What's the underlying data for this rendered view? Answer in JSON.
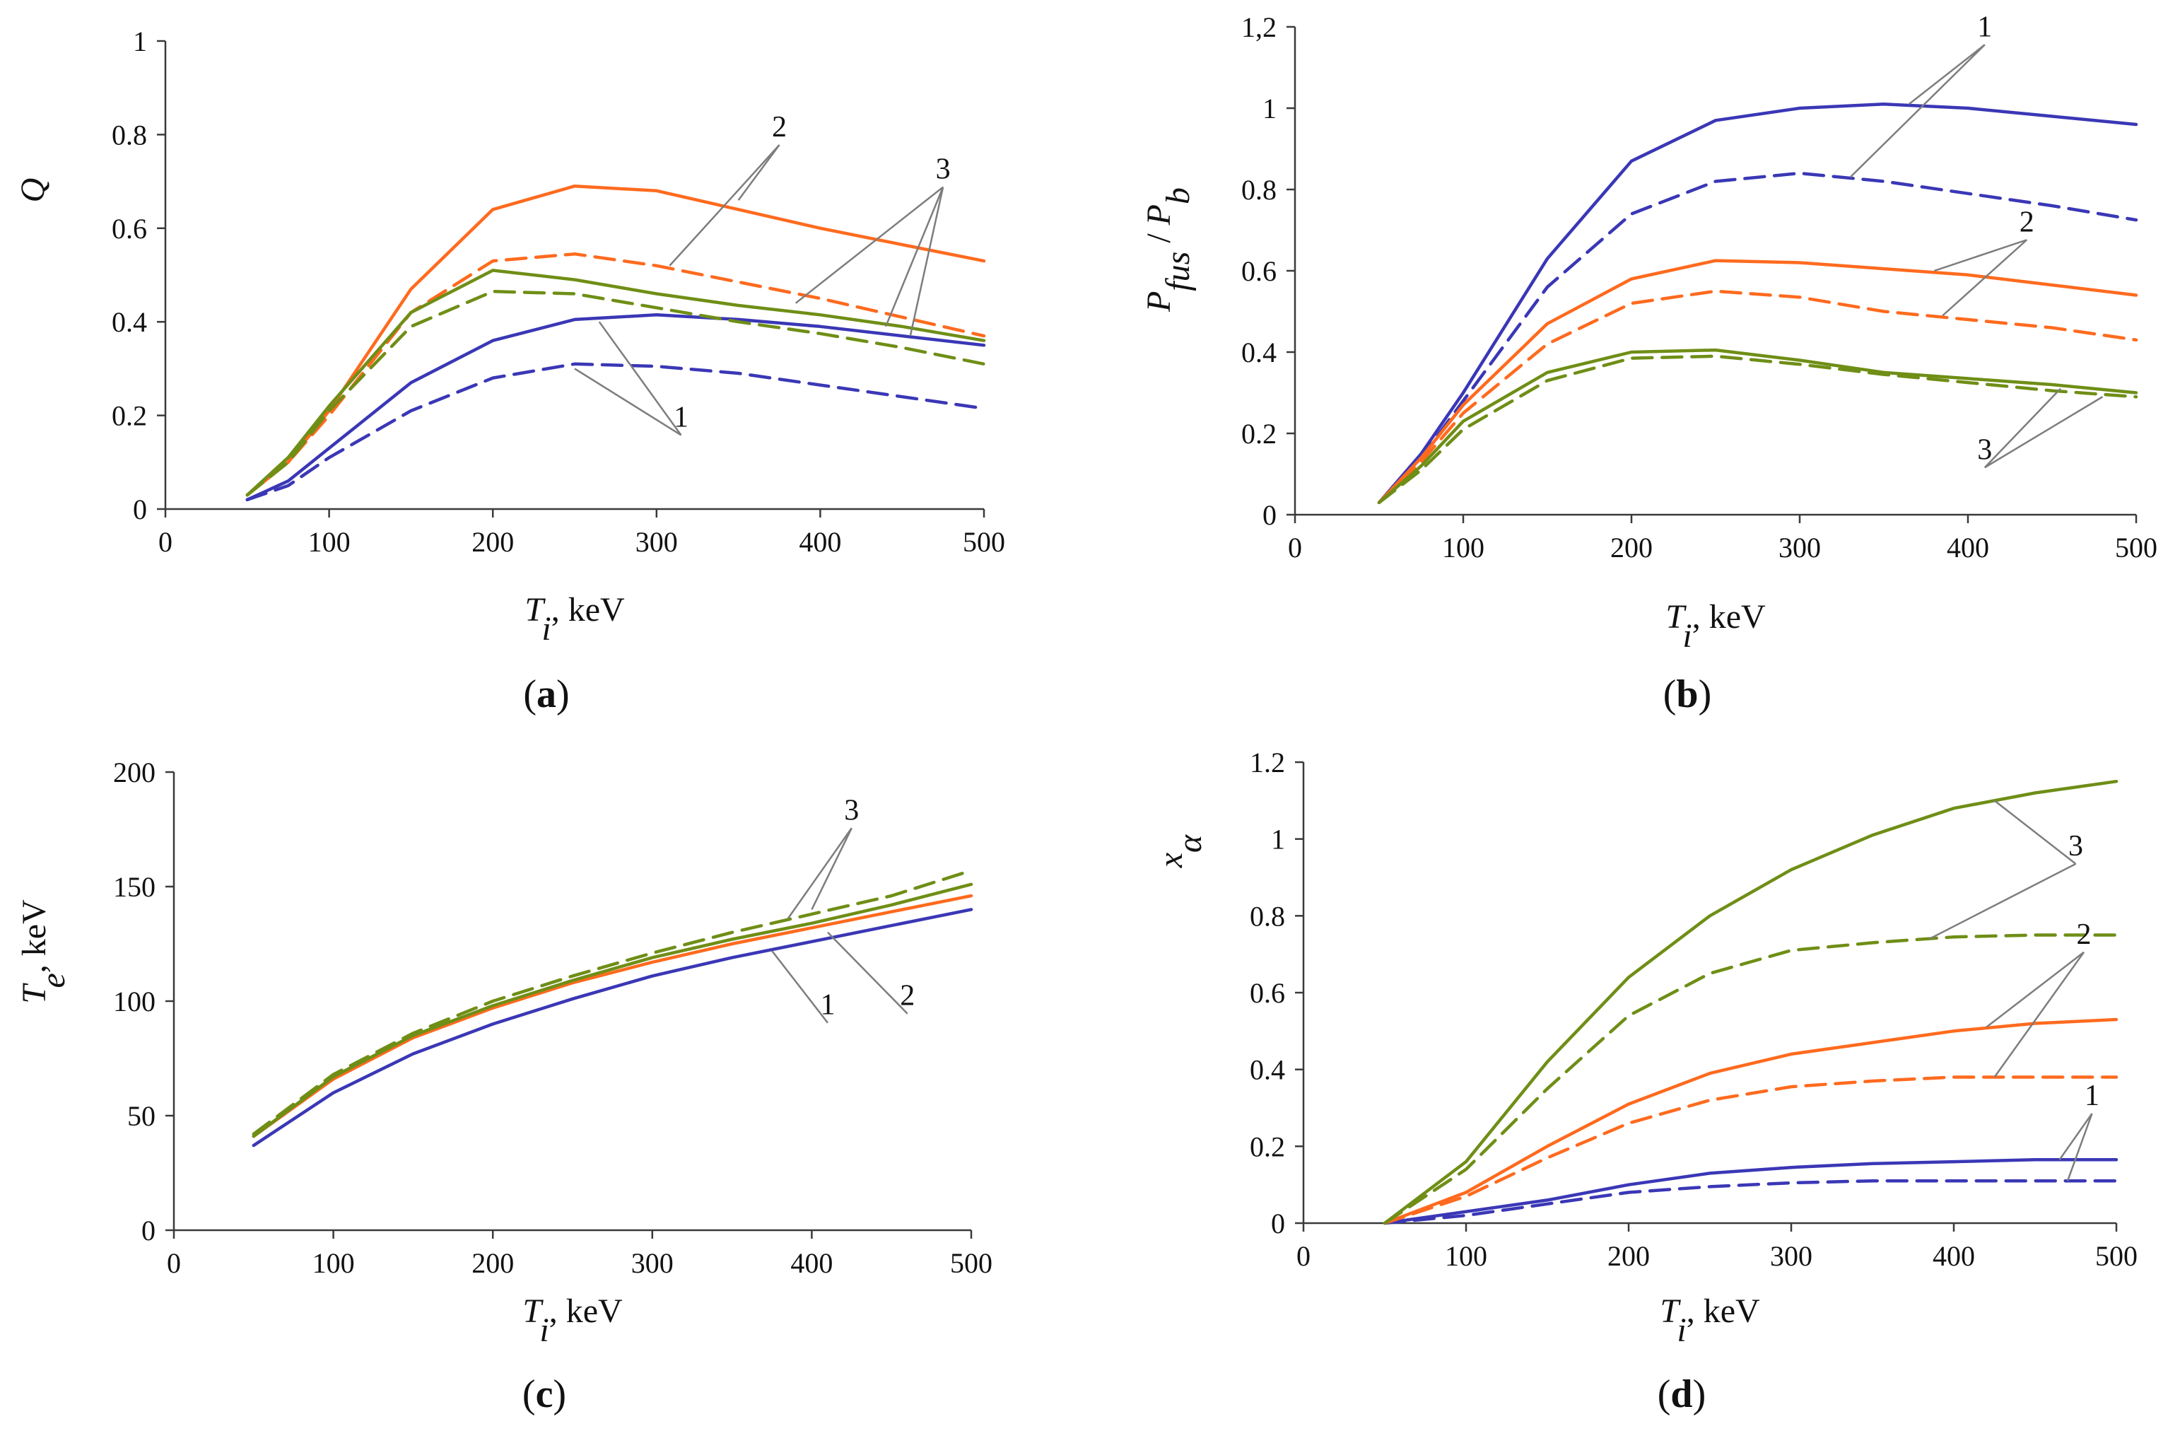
{
  "colors": {
    "1": "#3a37b6",
    "2": "#ff6a1e",
    "3": "#6f8e16",
    "axis": "#3a3a3a",
    "leader": "#7d7d7d"
  },
  "chart_data": [
    {
      "id": "a",
      "type": "line",
      "panel_label": "a",
      "ylabel": "Q",
      "xlabel_main": "T",
      "xlabel_sub": "i",
      "xlabel_unit": ", keV",
      "xlim": [
        0,
        500
      ],
      "ylim": [
        0,
        1
      ],
      "x_ticks": [
        0,
        100,
        200,
        300,
        400,
        500
      ],
      "x_tick_labels": [
        "0",
        "100",
        "200",
        "300",
        "400",
        "500"
      ],
      "y_ticks": [
        0,
        0.2,
        0.4,
        0.6,
        0.8,
        1
      ],
      "y_tick_labels": [
        "0",
        "0.2",
        "0.4",
        "0.6",
        "0.8",
        "1"
      ],
      "series": [
        {
          "name": "1",
          "group": "1",
          "style": "solid",
          "x": [
            50,
            75,
            100,
            150,
            200,
            250,
            300,
            350,
            400,
            450,
            500
          ],
          "y": [
            0.02,
            0.06,
            0.13,
            0.27,
            0.36,
            0.405,
            0.415,
            0.405,
            0.39,
            0.37,
            0.35
          ]
        },
        {
          "name": "1 dashed",
          "group": "1",
          "style": "dashed",
          "x": [
            50,
            75,
            100,
            150,
            200,
            250,
            300,
            350,
            400,
            450,
            500
          ],
          "y": [
            0.02,
            0.05,
            0.11,
            0.21,
            0.28,
            0.31,
            0.305,
            0.29,
            0.265,
            0.24,
            0.215
          ]
        },
        {
          "name": "2",
          "group": "2",
          "style": "solid",
          "x": [
            50,
            75,
            100,
            150,
            200,
            250,
            300,
            350,
            400,
            450,
            500
          ],
          "y": [
            0.03,
            0.1,
            0.21,
            0.47,
            0.64,
            0.69,
            0.68,
            0.64,
            0.6,
            0.565,
            0.53
          ]
        },
        {
          "name": "2 dashed",
          "group": "2",
          "style": "dashed",
          "x": [
            50,
            75,
            100,
            150,
            200,
            250,
            300,
            350,
            400,
            450,
            500
          ],
          "y": [
            0.03,
            0.1,
            0.2,
            0.42,
            0.53,
            0.545,
            0.52,
            0.485,
            0.45,
            0.41,
            0.37
          ]
        },
        {
          "name": "3",
          "group": "3",
          "style": "solid",
          "x": [
            50,
            75,
            100,
            150,
            200,
            250,
            300,
            350,
            400,
            450,
            500
          ],
          "y": [
            0.03,
            0.11,
            0.22,
            0.42,
            0.51,
            0.49,
            0.46,
            0.435,
            0.415,
            0.39,
            0.36
          ]
        },
        {
          "name": "3 dashed",
          "group": "3",
          "style": "dashed",
          "x": [
            50,
            75,
            100,
            150,
            200,
            250,
            300,
            350,
            400,
            450,
            500
          ],
          "y": [
            0.03,
            0.1,
            0.21,
            0.39,
            0.465,
            0.46,
            0.43,
            0.4,
            0.375,
            0.345,
            0.31
          ]
        }
      ],
      "annotations": [
        {
          "text": "1",
          "at": [
            315,
            0.17
          ],
          "targets": [
            [
              265,
              0.4
            ],
            [
              250,
              0.3
            ]
          ]
        },
        {
          "text": "2",
          "at": [
            375,
            0.79
          ],
          "targets": [
            [
              350,
              0.66
            ],
            [
              308,
              0.52
            ]
          ]
        },
        {
          "text": "3",
          "at": [
            475,
            0.7
          ],
          "targets": [
            [
              385,
              0.44
            ],
            [
              455,
              0.37
            ],
            [
              440,
              0.39
            ]
          ]
        }
      ]
    },
    {
      "id": "b",
      "type": "line",
      "panel_label": "b",
      "ylabel_main": "P",
      "ylabel_sub": "fus",
      "ylabel_sep": " / ",
      "ylabel_main2": "P",
      "ylabel_sub2": "b",
      "xlabel_main": "T",
      "xlabel_sub": "i",
      "xlabel_unit": ", keV",
      "xlim": [
        0,
        500
      ],
      "ylim": [
        0,
        1.2
      ],
      "x_ticks": [
        0,
        100,
        200,
        300,
        400,
        500
      ],
      "x_tick_labels": [
        "0",
        "100",
        "200",
        "300",
        "400",
        "500"
      ],
      "y_ticks": [
        0,
        0.2,
        0.4,
        0.6,
        0.8,
        1,
        1.2
      ],
      "y_tick_labels": [
        "0",
        "0.2",
        "0.4",
        "0.6",
        "0.8",
        "1",
        "1,2"
      ],
      "series": [
        {
          "name": "1",
          "group": "1",
          "style": "solid",
          "x": [
            50,
            75,
            100,
            150,
            200,
            250,
            300,
            350,
            400,
            450,
            500
          ],
          "y": [
            0.03,
            0.15,
            0.3,
            0.63,
            0.87,
            0.97,
            1.0,
            1.01,
            1.0,
            0.98,
            0.96
          ]
        },
        {
          "name": "1 dashed",
          "group": "1",
          "style": "dashed",
          "x": [
            50,
            75,
            100,
            150,
            200,
            250,
            300,
            350,
            400,
            450,
            500
          ],
          "y": [
            0.03,
            0.14,
            0.28,
            0.56,
            0.74,
            0.82,
            0.84,
            0.82,
            0.79,
            0.76,
            0.725
          ]
        },
        {
          "name": "2",
          "group": "2",
          "style": "solid",
          "x": [
            50,
            75,
            100,
            150,
            200,
            250,
            300,
            350,
            400,
            450,
            500
          ],
          "y": [
            0.03,
            0.14,
            0.27,
            0.47,
            0.58,
            0.625,
            0.62,
            0.605,
            0.59,
            0.565,
            0.54
          ]
        },
        {
          "name": "2 dashed",
          "group": "2",
          "style": "dashed",
          "x": [
            50,
            75,
            100,
            150,
            200,
            250,
            300,
            350,
            400,
            450,
            500
          ],
          "y": [
            0.03,
            0.13,
            0.25,
            0.42,
            0.52,
            0.55,
            0.535,
            0.5,
            0.48,
            0.46,
            0.43
          ]
        },
        {
          "name": "3",
          "group": "3",
          "style": "solid",
          "x": [
            50,
            75,
            100,
            150,
            200,
            250,
            300,
            350,
            400,
            450,
            500
          ],
          "y": [
            0.03,
            0.12,
            0.23,
            0.35,
            0.4,
            0.405,
            0.38,
            0.35,
            0.335,
            0.32,
            0.3
          ]
        },
        {
          "name": "3 dashed",
          "group": "3",
          "style": "dashed",
          "x": [
            50,
            75,
            100,
            150,
            200,
            250,
            300,
            350,
            400,
            450,
            500
          ],
          "y": [
            0.03,
            0.11,
            0.21,
            0.33,
            0.385,
            0.39,
            0.37,
            0.345,
            0.325,
            0.305,
            0.29
          ]
        }
      ],
      "annotations": [
        {
          "text": "1",
          "at": [
            410,
            1.17
          ],
          "targets": [
            [
              365,
              1.01
            ],
            [
              330,
              0.83
            ]
          ]
        },
        {
          "text": "2",
          "at": [
            435,
            0.69
          ],
          "targets": [
            [
              380,
              0.6
            ],
            [
              385,
              0.49
            ]
          ]
        },
        {
          "text": "3",
          "at": [
            410,
            0.13
          ],
          "targets": [
            [
              455,
              0.31
            ],
            [
              480,
              0.29
            ]
          ]
        }
      ]
    },
    {
      "id": "c",
      "type": "line",
      "panel_label": "c",
      "ylabel_main": "T",
      "ylabel_sub": "e",
      "ylabel_unit": ", keV",
      "xlabel_main": "T",
      "xlabel_sub": "i",
      "xlabel_unit": ", keV",
      "xlim": [
        0,
        500
      ],
      "ylim": [
        0,
        200
      ],
      "x_ticks": [
        0,
        100,
        200,
        300,
        400,
        500
      ],
      "x_tick_labels": [
        "0",
        "100",
        "200",
        "300",
        "400",
        "500"
      ],
      "y_ticks": [
        0,
        50,
        100,
        150,
        200
      ],
      "y_tick_labels": [
        "0",
        "50",
        "100",
        "150",
        "200"
      ],
      "series": [
        {
          "name": "1",
          "group": "1",
          "style": "solid",
          "x": [
            50,
            100,
            150,
            200,
            250,
            300,
            350,
            400,
            450,
            500
          ],
          "y": [
            37,
            60,
            77,
            90,
            101,
            111,
            119,
            126,
            133,
            140
          ]
        },
        {
          "name": "2",
          "group": "2",
          "style": "solid",
          "x": [
            50,
            100,
            150,
            200,
            250,
            300,
            350,
            400,
            450,
            500
          ],
          "y": [
            41,
            66,
            84,
            97,
            108,
            117,
            125,
            132,
            139,
            146
          ]
        },
        {
          "name": "3",
          "group": "3",
          "style": "solid",
          "x": [
            50,
            100,
            150,
            200,
            250,
            300,
            350,
            400,
            450,
            500
          ],
          "y": [
            41,
            67,
            85,
            98,
            109,
            119,
            127,
            134,
            142,
            151
          ]
        },
        {
          "name": "3 dashed",
          "group": "3",
          "style": "dashed",
          "x": [
            50,
            100,
            150,
            200,
            250,
            300,
            350,
            400,
            450,
            500
          ],
          "y": [
            42,
            68,
            86,
            100,
            111,
            121,
            130,
            138,
            146,
            157
          ]
        }
      ],
      "annotations": [
        {
          "text": "1",
          "at": [
            410,
            93
          ],
          "targets": [
            [
              375,
              122
            ]
          ]
        },
        {
          "text": "2",
          "at": [
            460,
            97
          ],
          "targets": [
            [
              410,
              130
            ]
          ]
        },
        {
          "text": "3",
          "at": [
            425,
            178
          ],
          "targets": [
            [
              385,
              136
            ],
            [
              400,
              140
            ]
          ]
        }
      ]
    },
    {
      "id": "d",
      "type": "line",
      "panel_label": "d",
      "ylabel_main": "x",
      "ylabel_sub": "α",
      "xlabel_main": "T",
      "xlabel_sub": "i",
      "xlabel_unit": ", keV",
      "xlim": [
        0,
        500
      ],
      "ylim": [
        0,
        1.2
      ],
      "x_ticks": [
        0,
        100,
        200,
        300,
        400,
        500
      ],
      "x_tick_labels": [
        "0",
        "100",
        "200",
        "300",
        "400",
        "500"
      ],
      "y_ticks": [
        0,
        0.2,
        0.4,
        0.6,
        0.8,
        1,
        1.2
      ],
      "y_tick_labels": [
        "0",
        "0.2",
        "0.4",
        "0.6",
        "0.8",
        "1",
        "1.2"
      ],
      "series": [
        {
          "name": "1",
          "group": "1",
          "style": "solid",
          "x": [
            50,
            100,
            150,
            200,
            250,
            300,
            350,
            400,
            450,
            500
          ],
          "y": [
            0.0,
            0.03,
            0.06,
            0.1,
            0.13,
            0.145,
            0.155,
            0.16,
            0.165,
            0.165
          ]
        },
        {
          "name": "1 dashed",
          "group": "1",
          "style": "dashed",
          "x": [
            50,
            100,
            150,
            200,
            250,
            300,
            350,
            400,
            450,
            500
          ],
          "y": [
            0.0,
            0.02,
            0.05,
            0.08,
            0.095,
            0.105,
            0.11,
            0.11,
            0.11,
            0.11
          ]
        },
        {
          "name": "2",
          "group": "2",
          "style": "solid",
          "x": [
            50,
            100,
            150,
            200,
            250,
            300,
            350,
            400,
            450,
            500
          ],
          "y": [
            0.0,
            0.08,
            0.2,
            0.31,
            0.39,
            0.44,
            0.47,
            0.5,
            0.52,
            0.53
          ]
        },
        {
          "name": "2 dashed",
          "group": "2",
          "style": "dashed",
          "x": [
            50,
            100,
            150,
            200,
            250,
            300,
            350,
            400,
            450,
            500
          ],
          "y": [
            0.0,
            0.07,
            0.17,
            0.26,
            0.32,
            0.355,
            0.37,
            0.38,
            0.38,
            0.38
          ]
        },
        {
          "name": "3",
          "group": "3",
          "style": "solid",
          "x": [
            50,
            100,
            150,
            200,
            250,
            300,
            350,
            400,
            450,
            500
          ],
          "y": [
            0.0,
            0.16,
            0.42,
            0.64,
            0.8,
            0.92,
            1.01,
            1.08,
            1.12,
            1.15
          ]
        },
        {
          "name": "3 dashed",
          "group": "3",
          "style": "dashed",
          "x": [
            50,
            100,
            150,
            200,
            250,
            300,
            350,
            400,
            450,
            500
          ],
          "y": [
            0.0,
            0.14,
            0.35,
            0.54,
            0.65,
            0.71,
            0.73,
            0.745,
            0.75,
            0.75
          ]
        }
      ],
      "annotations": [
        {
          "text": "1",
          "at": [
            485,
            0.3
          ],
          "targets": [
            [
              465,
              0.165
            ],
            [
              470,
              0.11
            ]
          ]
        },
        {
          "text": "2",
          "at": [
            480,
            0.72
          ],
          "targets": [
            [
              420,
              0.51
            ],
            [
              425,
              0.38
            ]
          ]
        },
        {
          "text": "3",
          "at": [
            475,
            0.95
          ],
          "targets": [
            [
              425,
              1.1
            ],
            [
              385,
              0.74
            ]
          ]
        }
      ]
    }
  ]
}
